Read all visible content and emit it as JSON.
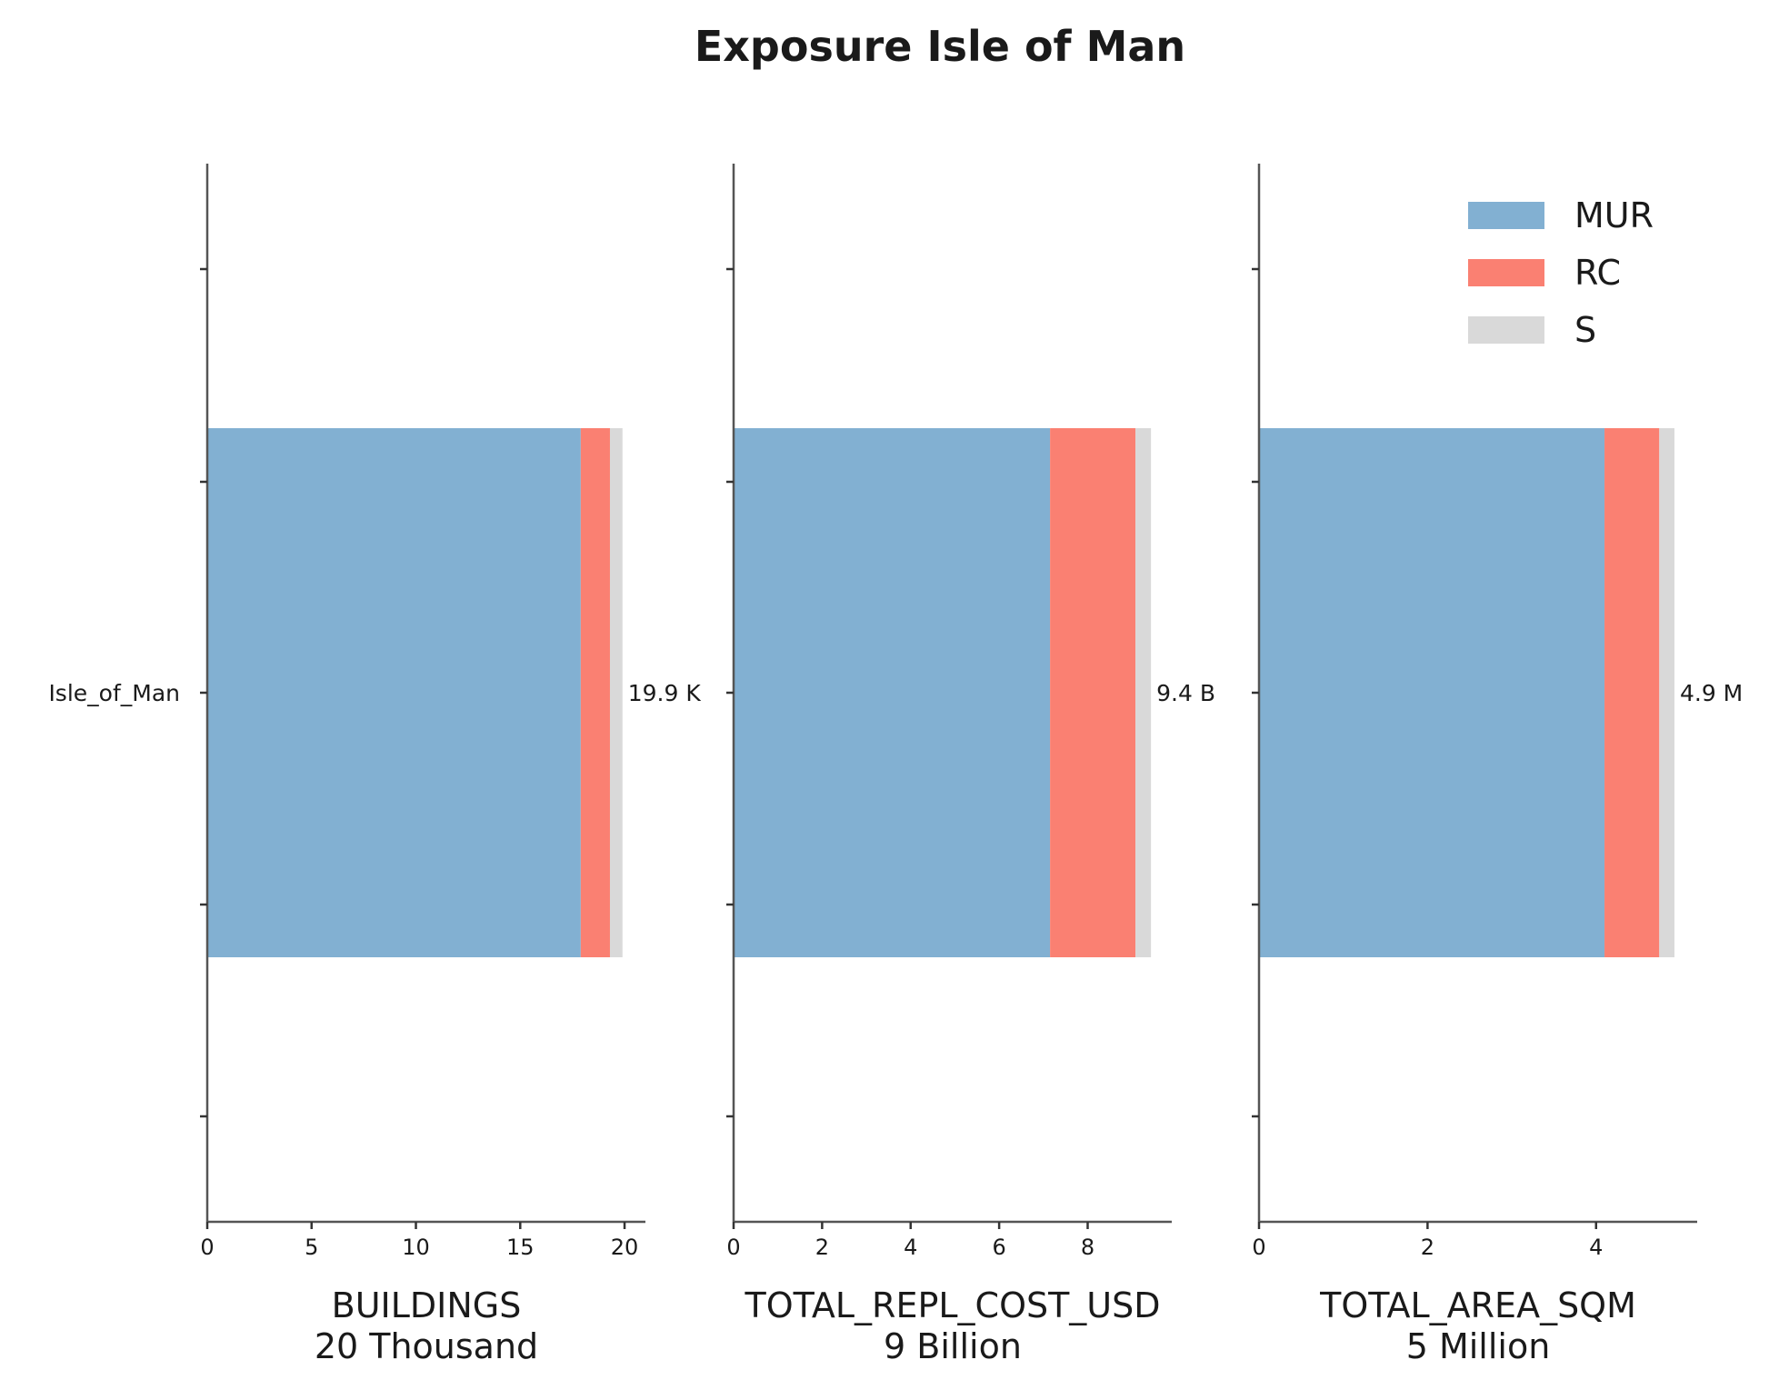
{
  "chart_data": {
    "type": "bar",
    "orientation": "horizontal",
    "stacked": true,
    "title": "Exposure Isle of Man",
    "category": "Isle_of_Man",
    "legend": {
      "position": "top-right",
      "entries": [
        {
          "name": "MUR",
          "color": "#82b0d2"
        },
        {
          "name": "RC",
          "color": "#fa8072"
        },
        {
          "name": "S",
          "color": "#d9d9d9"
        }
      ]
    },
    "panels": [
      {
        "xlabel": "BUILDINGS",
        "xlabel_unit": "20 Thousand",
        "xlim": [
          0,
          21
        ],
        "xticks": [
          0,
          5,
          10,
          15,
          20
        ],
        "values": {
          "MUR": 17.9,
          "RC": 1.4,
          "S": 0.6
        },
        "total_label": "19.9 K"
      },
      {
        "xlabel": "TOTAL_REPL_COST_USD",
        "xlabel_unit": "9 Billion",
        "xlim": [
          0,
          9.9
        ],
        "xticks": [
          0,
          2,
          4,
          6,
          8
        ],
        "values": {
          "MUR": 7.15,
          "RC": 1.93,
          "S": 0.35
        },
        "total_label": "9.4 B"
      },
      {
        "xlabel": "TOTAL_AREA_SQM",
        "xlabel_unit": "5 Million",
        "xlim": [
          0,
          5.2
        ],
        "xticks": [
          0,
          2,
          4
        ],
        "values": {
          "MUR": 4.1,
          "RC": 0.65,
          "S": 0.18
        },
        "total_label": "4.9 M"
      }
    ]
  }
}
